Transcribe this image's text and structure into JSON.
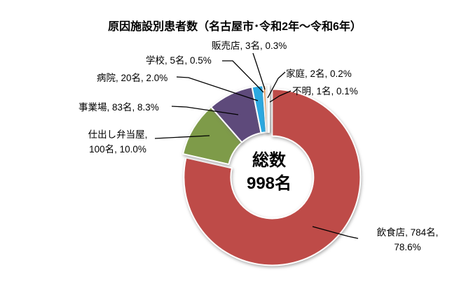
{
  "chart_data": {
    "type": "pie",
    "subtype": "donut",
    "title": "原因施設別患者数（名古屋市･令和2年～令和6年）",
    "total": 998,
    "total_unit": "名",
    "center_label_lines": [
      "総数",
      "998名"
    ],
    "legend_position": "none",
    "grid": false,
    "segments": [
      {
        "key": "inshokuten",
        "name": "飲食店",
        "value": 784,
        "percent": "78.6%",
        "color": "#BE4B48",
        "exploded": true,
        "label_lines": [
          "飲食店, 784名,",
          "78.6%"
        ]
      },
      {
        "key": "shidashi",
        "name": "仕出し弁当屋",
        "value": 100,
        "percent": "10.0%",
        "color": "#7E9B49",
        "exploded": false,
        "label_lines": [
          "仕出し弁当屋,",
          "100名, 10.0%"
        ]
      },
      {
        "key": "jigyoujou",
        "name": "事業場",
        "value": 83,
        "percent": "8.3%",
        "color": "#5E4A7B",
        "exploded": false,
        "label_lines": [
          "事業場, 83名, 8.3%"
        ]
      },
      {
        "key": "byouin",
        "name": "病院",
        "value": 20,
        "percent": "2.0%",
        "color": "#2CA9E1",
        "exploded": false,
        "label_lines": [
          "病院, 20名, 2.0%"
        ]
      },
      {
        "key": "gakkou",
        "name": "学校",
        "value": 5,
        "percent": "0.5%",
        "color": "#F79646",
        "exploded": false,
        "label_lines": [
          "学校, 5名, 0.5%"
        ]
      },
      {
        "key": "hanbaiten",
        "name": "販売店",
        "value": 3,
        "percent": "0.3%",
        "color": "#E3D3B7",
        "exploded": false,
        "label_lines": [
          "販売店, 3名, 0.3%"
        ]
      },
      {
        "key": "katei",
        "name": "家庭",
        "value": 2,
        "percent": "0.2%",
        "color": "#EAE2D8",
        "exploded": false,
        "label_lines": [
          "家庭, 2名, 0.2%"
        ]
      },
      {
        "key": "fumei",
        "name": "不明",
        "value": 1,
        "percent": "0.1%",
        "color": "#D9D9D9",
        "exploded": false,
        "label_lines": [
          "不明, 1名, 0.1%"
        ]
      }
    ],
    "style": {
      "slice_border_color": "#FFFFFF",
      "leader_line_color": "#000000",
      "hole_ratio": 0.47
    }
  }
}
